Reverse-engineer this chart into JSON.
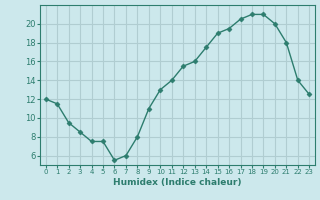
{
  "x": [
    0,
    1,
    2,
    3,
    4,
    5,
    6,
    7,
    8,
    9,
    10,
    11,
    12,
    13,
    14,
    15,
    16,
    17,
    18,
    19,
    20,
    21,
    22,
    23
  ],
  "y": [
    12,
    11.5,
    9.5,
    8.5,
    7.5,
    7.5,
    5.5,
    6,
    8,
    11,
    13,
    14,
    15.5,
    16,
    17.5,
    19,
    19.5,
    20.5,
    21,
    21,
    20,
    18,
    14,
    12.5
  ],
  "xlabel": "Humidex (Indice chaleur)",
  "line_color": "#2d7d6e",
  "marker": "D",
  "marker_size": 2.5,
  "bg_color": "#cce8ec",
  "grid_color": "#b0cdd1",
  "xlim": [
    -0.5,
    23.5
  ],
  "ylim": [
    5.0,
    22.0
  ],
  "yticks": [
    6,
    8,
    10,
    12,
    14,
    16,
    18,
    20
  ],
  "xticks": [
    0,
    1,
    2,
    3,
    4,
    5,
    6,
    7,
    8,
    9,
    10,
    11,
    12,
    13,
    14,
    15,
    16,
    17,
    18,
    19,
    20,
    21,
    22,
    23
  ]
}
